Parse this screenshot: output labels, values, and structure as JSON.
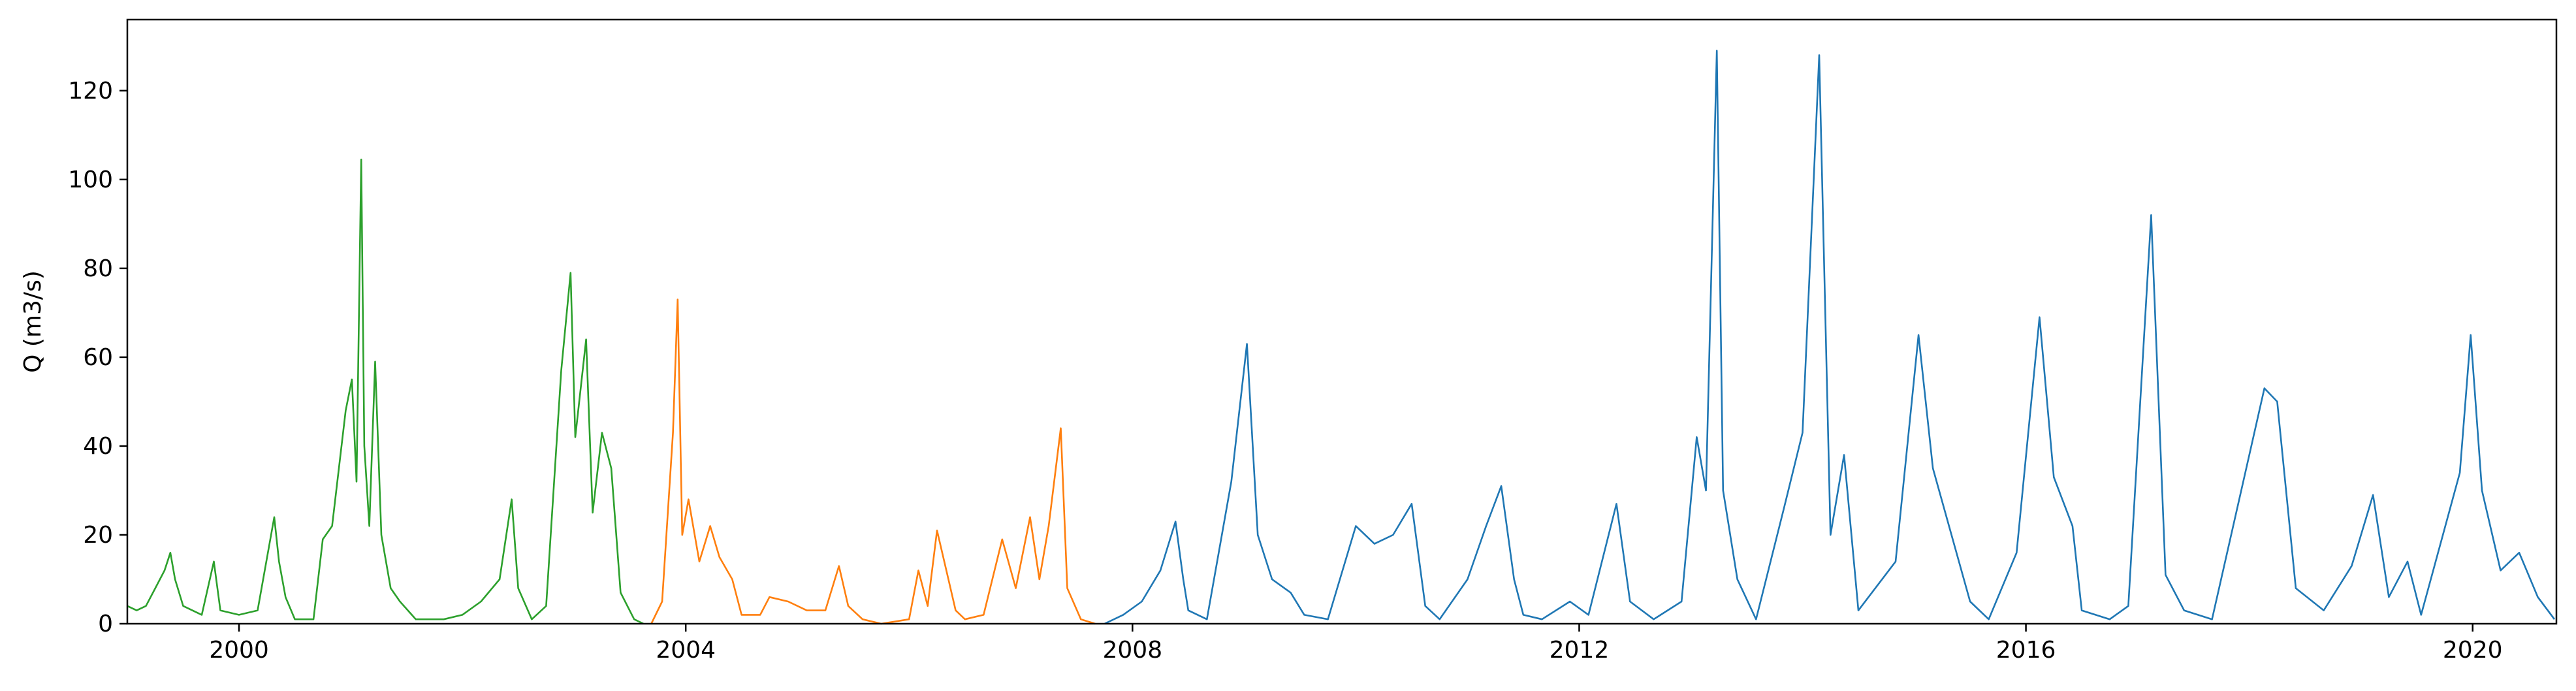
{
  "chart_data": {
    "type": "line",
    "title": "",
    "xlabel": "",
    "ylabel": "Q (m3/s)",
    "xlim": [
      "1999-01-01",
      "2020-10-01"
    ],
    "ylim": [
      0,
      136
    ],
    "x_ticks": [
      "2000",
      "2004",
      "2008",
      "2012",
      "2016",
      "2020"
    ],
    "y_ticks": [
      "0",
      "20",
      "40",
      "60",
      "80",
      "100",
      "120"
    ],
    "grid": false,
    "legend": "none",
    "series": [
      {
        "color": "#2ca02c",
        "points": [
          [
            "1999-01-01",
            4
          ],
          [
            "1999-02-01",
            3
          ],
          [
            "1999-03-01",
            4
          ],
          [
            "1999-04-01",
            8
          ],
          [
            "1999-05-01",
            12
          ],
          [
            "1999-05-20",
            16
          ],
          [
            "1999-06-05",
            10
          ],
          [
            "1999-07-01",
            4
          ],
          [
            "1999-09-01",
            2
          ],
          [
            "1999-10-10",
            14
          ],
          [
            "1999-11-01",
            3
          ],
          [
            "2000-01-01",
            2
          ],
          [
            "2000-03-01",
            3
          ],
          [
            "2000-04-25",
            24
          ],
          [
            "2000-05-10",
            14
          ],
          [
            "2000-06-01",
            6
          ],
          [
            "2000-07-01",
            1
          ],
          [
            "2000-09-01",
            1
          ],
          [
            "2000-10-01",
            19
          ],
          [
            "2000-11-01",
            22
          ],
          [
            "2000-12-15",
            48
          ],
          [
            "2001-01-05",
            55
          ],
          [
            "2001-01-20",
            32
          ],
          [
            "2001-02-05",
            104.5
          ],
          [
            "2001-02-15",
            40
          ],
          [
            "2001-03-01",
            22
          ],
          [
            "2001-03-20",
            59
          ],
          [
            "2001-04-10",
            20
          ],
          [
            "2001-05-10",
            8
          ],
          [
            "2001-06-10",
            5
          ],
          [
            "2001-08-01",
            1
          ],
          [
            "2001-11-01",
            1
          ],
          [
            "2002-01-01",
            2
          ],
          [
            "2002-03-01",
            5
          ],
          [
            "2002-05-01",
            10
          ],
          [
            "2002-06-10",
            28
          ],
          [
            "2002-07-01",
            8
          ],
          [
            "2002-08-15",
            1
          ],
          [
            "2002-10-01",
            4
          ],
          [
            "2002-11-20",
            57
          ],
          [
            "2002-12-20",
            79
          ],
          [
            "2003-01-05",
            42
          ],
          [
            "2003-02-10",
            64
          ],
          [
            "2003-03-01",
            25
          ],
          [
            "2003-04-01",
            43
          ],
          [
            "2003-05-01",
            35
          ],
          [
            "2003-06-01",
            7
          ],
          [
            "2003-07-15",
            1
          ],
          [
            "2003-08-15",
            0
          ]
        ]
      },
      {
        "color": "#ff7f0e",
        "points": [
          [
            "2003-09-10",
            0
          ],
          [
            "2003-10-15",
            5
          ],
          [
            "2003-11-20",
            43
          ],
          [
            "2003-12-05",
            73
          ],
          [
            "2003-12-20",
            20
          ],
          [
            "2004-01-10",
            28
          ],
          [
            "2004-02-15",
            14
          ],
          [
            "2004-03-20",
            22
          ],
          [
            "2004-04-20",
            15
          ],
          [
            "2004-06-01",
            10
          ],
          [
            "2004-07-01",
            2
          ],
          [
            "2004-09-01",
            2
          ],
          [
            "2004-10-01",
            6
          ],
          [
            "2004-12-01",
            5
          ],
          [
            "2005-02-01",
            3
          ],
          [
            "2005-04-01",
            3
          ],
          [
            "2005-05-15",
            13
          ],
          [
            "2005-06-15",
            4
          ],
          [
            "2005-08-01",
            1
          ],
          [
            "2005-10-01",
            0
          ],
          [
            "2006-01-01",
            1
          ],
          [
            "2006-02-01",
            12
          ],
          [
            "2006-03-01",
            4
          ],
          [
            "2006-04-01",
            21
          ],
          [
            "2006-05-01",
            12
          ],
          [
            "2006-06-01",
            3
          ],
          [
            "2006-07-01",
            1
          ],
          [
            "2006-09-01",
            2
          ],
          [
            "2006-11-01",
            19
          ],
          [
            "2006-12-15",
            8
          ],
          [
            "2007-02-01",
            24
          ],
          [
            "2007-03-01",
            10
          ],
          [
            "2007-04-01",
            22
          ],
          [
            "2007-05-10",
            44
          ],
          [
            "2007-06-01",
            8
          ],
          [
            "2007-07-15",
            1
          ],
          [
            "2007-09-01",
            0
          ]
        ]
      },
      {
        "color": "#1f77b4",
        "points": [
          [
            "2007-10-01",
            0
          ],
          [
            "2007-12-01",
            2
          ],
          [
            "2008-02-01",
            5
          ],
          [
            "2008-04-01",
            12
          ],
          [
            "2008-05-20",
            23
          ],
          [
            "2008-06-15",
            10
          ],
          [
            "2008-07-01",
            3
          ],
          [
            "2008-09-01",
            1
          ],
          [
            "2008-11-20",
            32
          ],
          [
            "2009-01-10",
            63
          ],
          [
            "2009-02-15",
            20
          ],
          [
            "2009-04-01",
            10
          ],
          [
            "2009-06-01",
            7
          ],
          [
            "2009-07-15",
            2
          ],
          [
            "2009-10-01",
            1
          ],
          [
            "2010-01-01",
            22
          ],
          [
            "2010-03-01",
            18
          ],
          [
            "2010-05-01",
            20
          ],
          [
            "2010-07-01",
            27
          ],
          [
            "2010-08-15",
            4
          ],
          [
            "2010-10-01",
            1
          ],
          [
            "2011-01-01",
            10
          ],
          [
            "2011-03-01",
            22
          ],
          [
            "2011-04-20",
            31
          ],
          [
            "2011-06-01",
            10
          ],
          [
            "2011-07-01",
            2
          ],
          [
            "2011-09-01",
            1
          ],
          [
            "2011-12-01",
            5
          ],
          [
            "2012-02-01",
            2
          ],
          [
            "2012-05-01",
            27
          ],
          [
            "2012-06-15",
            5
          ],
          [
            "2012-09-01",
            1
          ],
          [
            "2012-12-01",
            5
          ],
          [
            "2013-01-20",
            42
          ],
          [
            "2013-02-20",
            30
          ],
          [
            "2013-03-25",
            129
          ],
          [
            "2013-04-15",
            30
          ],
          [
            "2013-06-01",
            10
          ],
          [
            "2013-08-01",
            1
          ],
          [
            "2013-11-01",
            26
          ],
          [
            "2014-01-01",
            43
          ],
          [
            "2014-02-25",
            128
          ],
          [
            "2014-04-01",
            20
          ],
          [
            "2014-05-15",
            38
          ],
          [
            "2014-07-01",
            3
          ],
          [
            "2014-11-01",
            14
          ],
          [
            "2015-01-15",
            65
          ],
          [
            "2015-03-01",
            35
          ],
          [
            "2015-05-01",
            20
          ],
          [
            "2015-07-01",
            5
          ],
          [
            "2015-09-01",
            1
          ],
          [
            "2015-12-01",
            16
          ],
          [
            "2016-02-15",
            69
          ],
          [
            "2016-04-01",
            33
          ],
          [
            "2016-06-01",
            22
          ],
          [
            "2016-07-01",
            3
          ],
          [
            "2016-10-01",
            1
          ],
          [
            "2016-12-01",
            4
          ],
          [
            "2017-02-15",
            92
          ],
          [
            "2017-04-01",
            11
          ],
          [
            "2017-06-01",
            3
          ],
          [
            "2017-09-01",
            1
          ],
          [
            "2018-01-01",
            38
          ],
          [
            "2018-02-20",
            53
          ],
          [
            "2018-04-01",
            50
          ],
          [
            "2018-06-01",
            8
          ],
          [
            "2018-09-01",
            3
          ],
          [
            "2018-12-01",
            13
          ],
          [
            "2019-02-10",
            29
          ],
          [
            "2019-04-01",
            6
          ],
          [
            "2019-06-01",
            14
          ],
          [
            "2019-07-15",
            2
          ],
          [
            "2019-11-20",
            34
          ],
          [
            "2019-12-25",
            65
          ],
          [
            "2020-02-01",
            30
          ],
          [
            "2020-04-01",
            12
          ],
          [
            "2020-06-01",
            16
          ],
          [
            "2020-08-01",
            6
          ],
          [
            "2020-09-25",
            1
          ]
        ]
      }
    ]
  }
}
